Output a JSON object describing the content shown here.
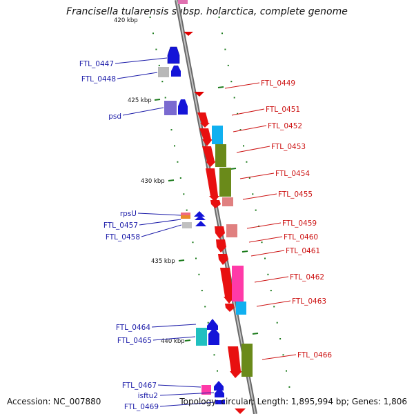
{
  "title": "Francisella tularensis subsp. holarctica, complete genome",
  "footer": {
    "accession": "Accession: NC_007880",
    "summary": "Topology: circular; Length: 1,895,994 bp; Genes: 1,806"
  },
  "colors": {
    "backbone": "#8a8a8a",
    "forward_label": "#1a1aa8",
    "reverse_label": "#cc1010",
    "tick": "#1a7a1a"
  },
  "scale_ticks": [
    "420 kbp",
    "425 kbp",
    "430 kbp",
    "435 kbp",
    "440 kbp"
  ],
  "left_labels": [
    "FTL_0447",
    "FTL_0448",
    "psd",
    "rpsU",
    "FTL_0457",
    "FTL_0458",
    "FTL_0464",
    "FTL_0465",
    "FTL_0467",
    "isftu2",
    "FTL_0469"
  ],
  "right_labels": [
    "FTL_0449",
    "FTL_0451",
    "FTL_0452",
    "FTL_0453",
    "FTL_0454",
    "FTL_0455",
    "FTL_0459",
    "FTL_0460",
    "FTL_0461",
    "FTL_0462",
    "FTL_0463",
    "FTL_0466"
  ]
}
